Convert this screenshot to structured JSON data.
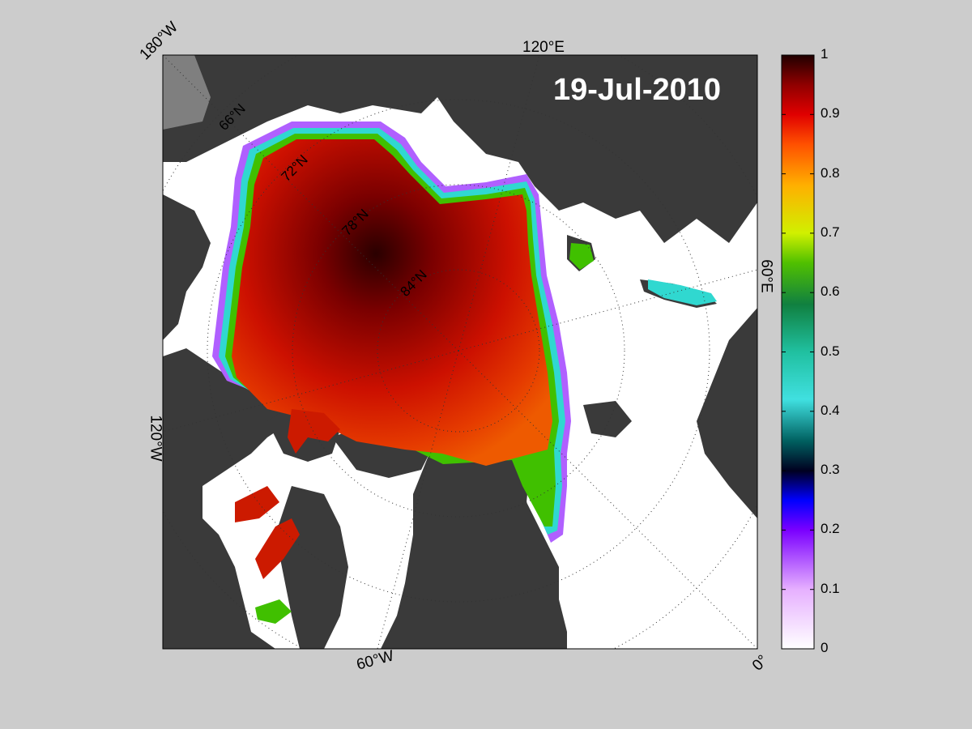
{
  "map": {
    "date": "19-Jul-2010",
    "longitude_labels": [
      "180°W",
      "120°E",
      "60°E",
      "0°",
      "60°W",
      "120°W"
    ],
    "latitude_labels": [
      "66°N",
      "72°N",
      "78°N",
      "84°N"
    ]
  },
  "colorbar": {
    "ticks": [
      "1",
      "0.9",
      "0.8",
      "0.7",
      "0.6",
      "0.5",
      "0.4",
      "0.3",
      "0.2",
      "0.1",
      "0"
    ],
    "range": [
      0,
      1
    ]
  },
  "colors": {
    "background": "#cccccc",
    "land": "#3a3a3a",
    "ocean": "#ffffff",
    "ice_high": "#c00000"
  }
}
